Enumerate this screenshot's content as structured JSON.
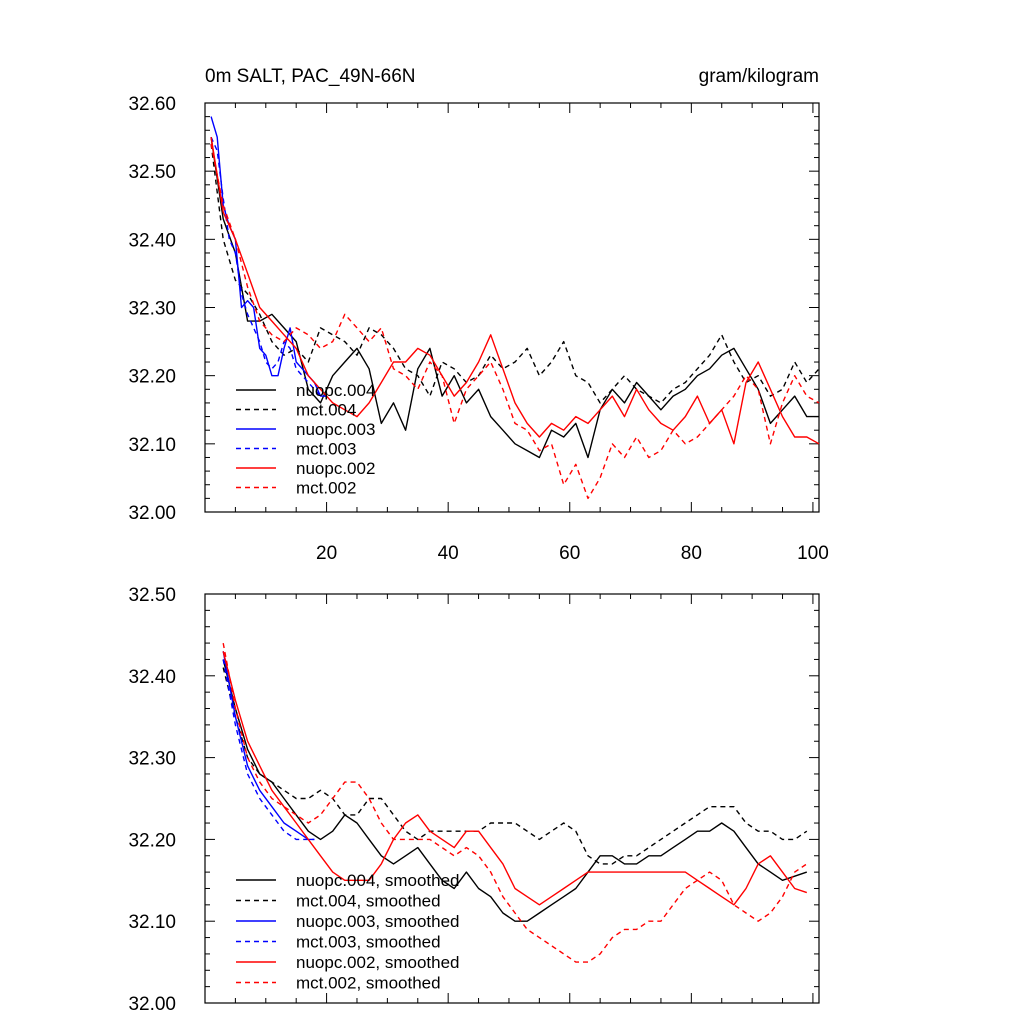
{
  "chart_data": [
    {
      "type": "line",
      "title": "0m SALT, PAC_49N-66N",
      "units": "gram/kilogram",
      "xlim": [
        0,
        101
      ],
      "ylim": [
        32.0,
        32.6
      ],
      "xticks": [
        "20",
        "40",
        "60",
        "80",
        "100"
      ],
      "yticks": [
        "32.00",
        "32.10",
        "32.20",
        "32.30",
        "32.40",
        "32.50",
        "32.60"
      ],
      "legend_position": "bottom-left",
      "series": [
        {
          "name": "nuopc.004",
          "color": "#000000",
          "dash": "solid",
          "x": [
            1,
            3,
            5,
            7,
            9,
            11,
            13,
            15,
            17,
            19,
            21,
            23,
            25,
            27,
            29,
            31,
            33,
            35,
            37,
            39,
            41,
            43,
            45,
            47,
            49,
            51,
            53,
            55,
            57,
            59,
            61,
            63,
            65,
            67,
            69,
            71,
            73,
            75,
            77,
            79,
            81,
            83,
            85,
            87,
            89,
            91,
            93,
            95,
            97,
            99,
            101
          ],
          "y": [
            32.55,
            32.43,
            32.38,
            32.28,
            32.28,
            32.29,
            32.27,
            32.25,
            32.18,
            32.16,
            32.2,
            32.22,
            32.24,
            32.21,
            32.13,
            32.16,
            32.12,
            32.21,
            32.24,
            32.17,
            32.2,
            32.16,
            32.18,
            32.14,
            32.12,
            32.1,
            32.09,
            32.08,
            32.12,
            32.11,
            32.13,
            32.08,
            32.15,
            32.18,
            32.16,
            32.19,
            32.17,
            32.15,
            32.17,
            32.18,
            32.2,
            32.21,
            32.23,
            32.24,
            32.21,
            32.18,
            32.13,
            32.15,
            32.17,
            32.14,
            32.14
          ]
        },
        {
          "name": "mct.004",
          "color": "#000000",
          "dash": "dashed",
          "x": [
            1,
            3,
            5,
            7,
            9,
            11,
            13,
            15,
            17,
            19,
            21,
            23,
            25,
            27,
            29,
            31,
            33,
            35,
            37,
            39,
            41,
            43,
            45,
            47,
            49,
            51,
            53,
            55,
            57,
            59,
            61,
            63,
            65,
            67,
            69,
            71,
            73,
            75,
            77,
            79,
            81,
            83,
            85,
            87,
            89,
            91,
            93,
            95,
            97,
            99,
            101
          ],
          "y": [
            32.54,
            32.4,
            32.34,
            32.32,
            32.29,
            32.25,
            32.23,
            32.24,
            32.22,
            32.27,
            32.26,
            32.25,
            32.23,
            32.27,
            32.26,
            32.24,
            32.21,
            32.2,
            32.17,
            32.22,
            32.21,
            32.19,
            32.2,
            32.23,
            32.21,
            32.22,
            32.24,
            32.2,
            32.22,
            32.25,
            32.2,
            32.19,
            32.16,
            32.18,
            32.2,
            32.18,
            32.17,
            32.16,
            32.18,
            32.19,
            32.21,
            32.23,
            32.26,
            32.22,
            32.19,
            32.2,
            32.17,
            32.18,
            32.22,
            32.19,
            32.21
          ]
        },
        {
          "name": "nuopc.003",
          "color": "#0000ff",
          "dash": "solid",
          "x": [
            1,
            2,
            3,
            4,
            5,
            6,
            7,
            8,
            9,
            10,
            11,
            12,
            13,
            14,
            15,
            16,
            17,
            18,
            19,
            20
          ],
          "y": [
            32.58,
            32.55,
            32.45,
            32.42,
            32.4,
            32.3,
            32.31,
            32.3,
            32.24,
            32.23,
            32.2,
            32.2,
            32.24,
            32.27,
            32.22,
            32.21,
            32.2,
            32.19,
            32.17,
            32.17
          ]
        },
        {
          "name": "mct.003",
          "color": "#0000ff",
          "dash": "dashed",
          "x": [
            1,
            2,
            3,
            4,
            5,
            6,
            7,
            8,
            9,
            10,
            11,
            12,
            13,
            14,
            15,
            16,
            17,
            18,
            19,
            20
          ],
          "y": [
            32.55,
            32.53,
            32.46,
            32.4,
            32.38,
            32.32,
            32.29,
            32.27,
            32.25,
            32.22,
            32.21,
            32.22,
            32.25,
            32.24,
            32.21,
            32.2,
            32.19,
            32.18,
            32.17,
            32.17
          ]
        },
        {
          "name": "nuopc.002",
          "color": "#ff0000",
          "dash": "solid",
          "x": [
            1,
            3,
            5,
            7,
            9,
            11,
            13,
            15,
            17,
            19,
            21,
            23,
            25,
            27,
            29,
            31,
            33,
            35,
            37,
            39,
            41,
            43,
            45,
            47,
            49,
            51,
            53,
            55,
            57,
            59,
            61,
            63,
            65,
            67,
            69,
            71,
            73,
            75,
            77,
            79,
            81,
            83,
            85,
            87,
            89,
            91,
            93,
            95,
            97,
            99,
            101
          ],
          "y": [
            32.55,
            32.44,
            32.4,
            32.35,
            32.3,
            32.28,
            32.26,
            32.24,
            32.2,
            32.18,
            32.16,
            32.15,
            32.14,
            32.16,
            32.19,
            32.22,
            32.22,
            32.24,
            32.23,
            32.2,
            32.17,
            32.19,
            32.22,
            32.26,
            32.21,
            32.16,
            32.13,
            32.11,
            32.13,
            32.12,
            32.14,
            32.13,
            32.15,
            32.17,
            32.14,
            32.18,
            32.15,
            32.13,
            32.12,
            32.14,
            32.17,
            32.13,
            32.15,
            32.1,
            32.19,
            32.22,
            32.18,
            32.14,
            32.11,
            32.11,
            32.1
          ]
        },
        {
          "name": "mct.002",
          "color": "#ff0000",
          "dash": "dashed",
          "x": [
            1,
            3,
            5,
            7,
            9,
            11,
            13,
            15,
            17,
            19,
            21,
            23,
            25,
            27,
            29,
            31,
            33,
            35,
            37,
            39,
            41,
            43,
            45,
            47,
            49,
            51,
            53,
            55,
            57,
            59,
            61,
            63,
            65,
            67,
            69,
            71,
            73,
            75,
            77,
            79,
            81,
            83,
            85,
            87,
            89,
            91,
            93,
            95,
            97,
            99,
            101
          ],
          "y": [
            32.54,
            32.45,
            32.4,
            32.33,
            32.28,
            32.26,
            32.25,
            32.27,
            32.26,
            32.24,
            32.25,
            32.29,
            32.27,
            32.25,
            32.27,
            32.21,
            32.2,
            32.18,
            32.22,
            32.2,
            32.13,
            32.18,
            32.2,
            32.22,
            32.18,
            32.13,
            32.12,
            32.09,
            32.1,
            32.04,
            32.07,
            32.02,
            32.05,
            32.1,
            32.08,
            32.11,
            32.08,
            32.09,
            32.12,
            32.1,
            32.11,
            32.13,
            32.15,
            32.17,
            32.2,
            32.18,
            32.1,
            32.16,
            32.2,
            32.17,
            32.16
          ]
        }
      ]
    },
    {
      "type": "line",
      "title": "",
      "xlim": [
        0,
        101
      ],
      "ylim": [
        32.0,
        32.5
      ],
      "yticks": [
        "32.00",
        "32.10",
        "32.20",
        "32.30",
        "32.40",
        "32.50"
      ],
      "legend_position": "bottom-left",
      "series": [
        {
          "name": "nuopc.004, smoothed",
          "color": "#000000",
          "dash": "solid",
          "x": [
            3,
            5,
            7,
            9,
            11,
            13,
            15,
            17,
            19,
            21,
            23,
            25,
            27,
            29,
            31,
            33,
            35,
            37,
            39,
            41,
            43,
            45,
            47,
            49,
            51,
            53,
            55,
            57,
            59,
            61,
            63,
            65,
            67,
            69,
            71,
            73,
            75,
            77,
            79,
            81,
            83,
            85,
            87,
            89,
            91,
            93,
            95,
            97,
            99
          ],
          "y": [
            32.42,
            32.36,
            32.31,
            32.28,
            32.27,
            32.25,
            32.23,
            32.21,
            32.2,
            32.21,
            32.23,
            32.22,
            32.2,
            32.18,
            32.17,
            32.18,
            32.19,
            32.17,
            32.15,
            32.14,
            32.16,
            32.14,
            32.13,
            32.11,
            32.1,
            32.1,
            32.11,
            32.12,
            32.13,
            32.14,
            32.16,
            32.18,
            32.18,
            32.17,
            32.17,
            32.18,
            32.18,
            32.19,
            32.2,
            32.21,
            32.21,
            32.22,
            32.21,
            32.19,
            32.17,
            32.16,
            32.15,
            32.155,
            32.16
          ]
        },
        {
          "name": "mct.004, smoothed",
          "color": "#000000",
          "dash": "dashed",
          "x": [
            3,
            5,
            7,
            9,
            11,
            13,
            15,
            17,
            19,
            21,
            23,
            25,
            27,
            29,
            31,
            33,
            35,
            37,
            39,
            41,
            43,
            45,
            47,
            49,
            51,
            53,
            55,
            57,
            59,
            61,
            63,
            65,
            67,
            69,
            71,
            73,
            75,
            77,
            79,
            81,
            83,
            85,
            87,
            89,
            91,
            93,
            95,
            97,
            99
          ],
          "y": [
            32.41,
            32.35,
            32.3,
            32.28,
            32.27,
            32.26,
            32.25,
            32.25,
            32.26,
            32.25,
            32.23,
            32.23,
            32.25,
            32.25,
            32.23,
            32.21,
            32.2,
            32.21,
            32.21,
            32.21,
            32.21,
            32.21,
            32.22,
            32.22,
            32.22,
            32.21,
            32.2,
            32.21,
            32.22,
            32.21,
            32.18,
            32.17,
            32.17,
            32.18,
            32.18,
            32.19,
            32.2,
            32.21,
            32.22,
            32.23,
            32.24,
            32.24,
            32.24,
            32.22,
            32.21,
            32.21,
            32.2,
            32.2,
            32.21
          ]
        },
        {
          "name": "nuopc.003, smoothed",
          "color": "#0000ff",
          "dash": "solid",
          "x": [
            3,
            5,
            7,
            9,
            11,
            13,
            15,
            17,
            18
          ],
          "y": [
            32.43,
            32.35,
            32.29,
            32.26,
            32.24,
            32.22,
            32.21,
            32.2,
            32.2
          ]
        },
        {
          "name": "mct.003, smoothed",
          "color": "#0000ff",
          "dash": "dashed",
          "x": [
            3,
            5,
            7,
            9,
            11,
            13,
            15,
            17,
            18
          ],
          "y": [
            32.42,
            32.34,
            32.28,
            32.25,
            32.23,
            32.21,
            32.2,
            32.2,
            32.2
          ]
        },
        {
          "name": "nuopc.002, smoothed",
          "color": "#ff0000",
          "dash": "solid",
          "x": [
            3,
            5,
            7,
            9,
            11,
            13,
            15,
            17,
            19,
            21,
            23,
            25,
            27,
            29,
            31,
            33,
            35,
            37,
            39,
            41,
            43,
            45,
            47,
            49,
            51,
            53,
            55,
            57,
            59,
            61,
            63,
            65,
            67,
            69,
            71,
            73,
            75,
            77,
            79,
            81,
            83,
            85,
            87,
            89,
            91,
            93,
            95,
            97,
            99
          ],
          "y": [
            32.43,
            32.37,
            32.32,
            32.29,
            32.26,
            32.24,
            32.22,
            32.2,
            32.18,
            32.16,
            32.15,
            32.15,
            32.15,
            32.17,
            32.2,
            32.22,
            32.23,
            32.21,
            32.2,
            32.19,
            32.21,
            32.21,
            32.19,
            32.17,
            32.14,
            32.13,
            32.12,
            32.13,
            32.14,
            32.15,
            32.16,
            32.16,
            32.16,
            32.16,
            32.16,
            32.16,
            32.16,
            32.16,
            32.16,
            32.15,
            32.14,
            32.13,
            32.12,
            32.14,
            32.17,
            32.18,
            32.16,
            32.14,
            32.135
          ]
        },
        {
          "name": "mct.002, smoothed",
          "color": "#ff0000",
          "dash": "dashed",
          "x": [
            3,
            5,
            7,
            9,
            11,
            13,
            15,
            17,
            19,
            21,
            23,
            25,
            27,
            29,
            31,
            33,
            35,
            37,
            39,
            41,
            43,
            45,
            47,
            49,
            51,
            53,
            55,
            57,
            59,
            61,
            63,
            65,
            67,
            69,
            71,
            73,
            75,
            77,
            79,
            81,
            83,
            85,
            87,
            89,
            91,
            93,
            95,
            97,
            99
          ],
          "y": [
            32.44,
            32.36,
            32.3,
            32.27,
            32.25,
            32.24,
            32.23,
            32.22,
            32.23,
            32.25,
            32.27,
            32.27,
            32.25,
            32.22,
            32.2,
            32.2,
            32.2,
            32.2,
            32.19,
            32.18,
            32.19,
            32.18,
            32.16,
            32.13,
            32.11,
            32.09,
            32.08,
            32.07,
            32.06,
            32.05,
            32.05,
            32.06,
            32.08,
            32.09,
            32.09,
            32.1,
            32.1,
            32.12,
            32.14,
            32.15,
            32.16,
            32.15,
            32.12,
            32.11,
            32.1,
            32.11,
            32.13,
            32.16,
            32.17
          ]
        }
      ]
    }
  ]
}
